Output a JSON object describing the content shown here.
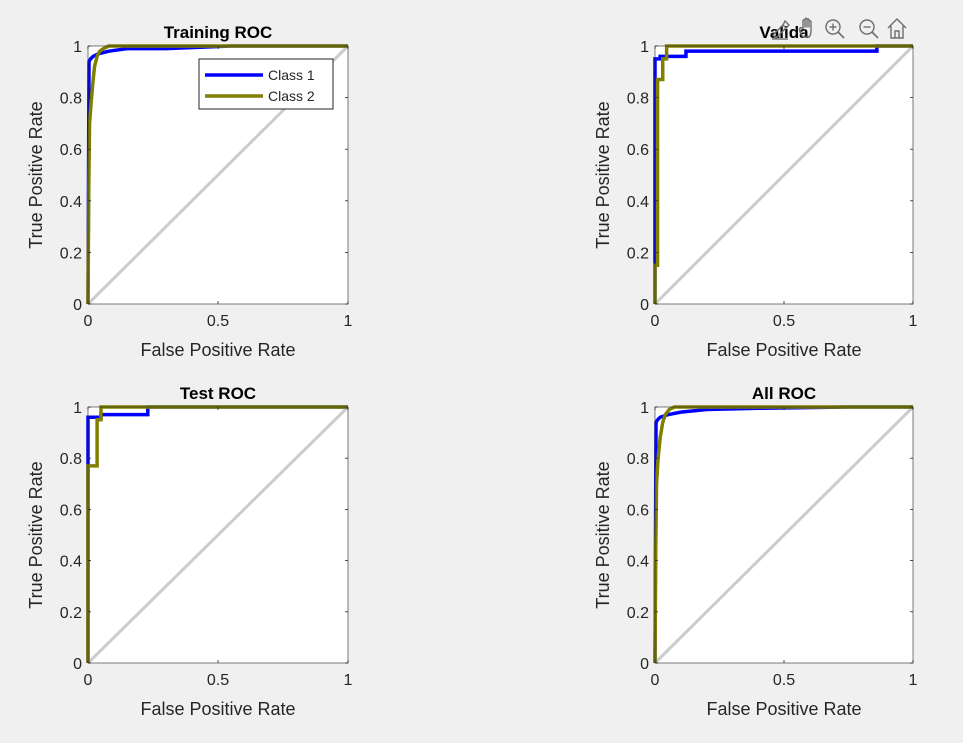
{
  "figure": {
    "background": "#f0f0f0",
    "axes_background": "#ffffff",
    "axes_border_color": "#262626",
    "diagonal_color": "#cccccc"
  },
  "toolbar": {
    "buttons": [
      {
        "name": "brush-icon",
        "icon": "brush"
      },
      {
        "name": "pan-icon",
        "icon": "hand"
      },
      {
        "name": "zoom-in-icon",
        "icon": "zoom-in"
      },
      {
        "name": "zoom-out-icon",
        "icon": "zoom-out"
      },
      {
        "name": "home-icon",
        "icon": "home"
      }
    ]
  },
  "legend": {
    "placement": "top-right (in Training ROC axes)",
    "entries": [
      {
        "label": "Class 1",
        "color": "#0000ff"
      },
      {
        "label": "Class 2",
        "color": "#808000"
      }
    ]
  },
  "chart_data": [
    {
      "type": "line",
      "title": "Training ROC",
      "xlabel": "False Positive Rate",
      "ylabel": "True Positive Rate",
      "xlim": [
        0,
        1
      ],
      "ylim": [
        0,
        1
      ],
      "xticks": [
        0,
        0.5,
        1
      ],
      "xtick_labels": [
        "0",
        "0.5",
        "1"
      ],
      "yticks": [
        0,
        0.2,
        0.4,
        0.6,
        0.8,
        1
      ],
      "ytick_labels": [
        "0",
        "0.2",
        "0.4",
        "0.6",
        "0.8",
        "1"
      ],
      "grid": false,
      "legend": true,
      "series": [
        {
          "name": "Class 1",
          "color": "#0000ff",
          "points": [
            [
              0,
              0
            ],
            [
              0.002,
              0.5
            ],
            [
              0.004,
              0.94
            ],
            [
              0.01,
              0.95
            ],
            [
              0.02,
              0.96
            ],
            [
              0.04,
              0.97
            ],
            [
              0.08,
              0.98
            ],
            [
              0.15,
              0.99
            ],
            [
              0.3,
              0.99
            ],
            [
              0.55,
              1
            ],
            [
              1,
              1
            ]
          ]
        },
        {
          "name": "Class 2",
          "color": "#808000",
          "points": [
            [
              0,
              0
            ],
            [
              0.003,
              0.45
            ],
            [
              0.006,
              0.7
            ],
            [
              0.012,
              0.78
            ],
            [
              0.018,
              0.85
            ],
            [
              0.025,
              0.92
            ],
            [
              0.035,
              0.96
            ],
            [
              0.045,
              0.98
            ],
            [
              0.06,
              0.99
            ],
            [
              0.08,
              1
            ],
            [
              1,
              1
            ]
          ]
        }
      ]
    },
    {
      "type": "line",
      "title": "Valida",
      "xlabel": "False Positive Rate",
      "ylabel": "True Positive Rate",
      "xlim": [
        0,
        1
      ],
      "ylim": [
        0,
        1
      ],
      "xticks": [
        0,
        0.5,
        1
      ],
      "xtick_labels": [
        "0",
        "0.5",
        "1"
      ],
      "yticks": [
        0,
        0.2,
        0.4,
        0.6,
        0.8,
        1
      ],
      "ytick_labels": [
        "0",
        "0.2",
        "0.4",
        "0.6",
        "0.8",
        "1"
      ],
      "grid": false,
      "legend": false,
      "series": [
        {
          "name": "Class 1",
          "color": "#0000ff",
          "points": [
            [
              0,
              0
            ],
            [
              0,
              0.95
            ],
            [
              0.02,
              0.95
            ],
            [
              0.02,
              0.96
            ],
            [
              0.12,
              0.96
            ],
            [
              0.12,
              0.98
            ],
            [
              0.86,
              0.98
            ],
            [
              0.86,
              1
            ],
            [
              1,
              1
            ]
          ]
        },
        {
          "name": "Class 2",
          "color": "#808000",
          "points": [
            [
              0,
              0
            ],
            [
              0,
              0.15
            ],
            [
              0.01,
              0.15
            ],
            [
              0.01,
              0.87
            ],
            [
              0.03,
              0.87
            ],
            [
              0.03,
              0.95
            ],
            [
              0.045,
              0.95
            ],
            [
              0.045,
              1
            ],
            [
              1,
              1
            ]
          ]
        }
      ]
    },
    {
      "type": "line",
      "title": "Test ROC",
      "xlabel": "False Positive Rate",
      "ylabel": "True Positive Rate",
      "xlim": [
        0,
        1
      ],
      "ylim": [
        0,
        1
      ],
      "xticks": [
        0,
        0.5,
        1
      ],
      "xtick_labels": [
        "0",
        "0.5",
        "1"
      ],
      "yticks": [
        0,
        0.2,
        0.4,
        0.6,
        0.8,
        1
      ],
      "ytick_labels": [
        "0",
        "0.2",
        "0.4",
        "0.6",
        "0.8",
        "1"
      ],
      "grid": false,
      "legend": false,
      "series": [
        {
          "name": "Class 1",
          "color": "#0000ff",
          "points": [
            [
              0,
              0
            ],
            [
              0,
              0.96
            ],
            [
              0.05,
              0.96
            ],
            [
              0.05,
              0.97
            ],
            [
              0.23,
              0.97
            ],
            [
              0.23,
              1
            ],
            [
              1,
              1
            ]
          ]
        },
        {
          "name": "Class 2",
          "color": "#808000",
          "points": [
            [
              0,
              0
            ],
            [
              0,
              0.77
            ],
            [
              0.035,
              0.77
            ],
            [
              0.035,
              0.95
            ],
            [
              0.05,
              0.95
            ],
            [
              0.05,
              1
            ],
            [
              1,
              1
            ]
          ]
        }
      ]
    },
    {
      "type": "line",
      "title": "All ROC",
      "xlabel": "False Positive Rate",
      "ylabel": "True Positive Rate",
      "xlim": [
        0,
        1
      ],
      "ylim": [
        0,
        1
      ],
      "xticks": [
        0,
        0.5,
        1
      ],
      "xtick_labels": [
        "0",
        "0.5",
        "1"
      ],
      "yticks": [
        0,
        0.2,
        0.4,
        0.6,
        0.8,
        1
      ],
      "ytick_labels": [
        "0",
        "0.2",
        "0.4",
        "0.6",
        "0.8",
        "1"
      ],
      "grid": false,
      "legend": false,
      "series": [
        {
          "name": "Class 1",
          "color": "#0000ff",
          "points": [
            [
              0,
              0
            ],
            [
              0.002,
              0.5
            ],
            [
              0.004,
              0.94
            ],
            [
              0.01,
              0.95
            ],
            [
              0.02,
              0.96
            ],
            [
              0.05,
              0.97
            ],
            [
              0.1,
              0.98
            ],
            [
              0.2,
              0.99
            ],
            [
              0.4,
              0.995
            ],
            [
              0.75,
              1
            ],
            [
              1,
              1
            ]
          ]
        },
        {
          "name": "Class 2",
          "color": "#808000",
          "points": [
            [
              0,
              0
            ],
            [
              0.003,
              0.45
            ],
            [
              0.006,
              0.7
            ],
            [
              0.012,
              0.8
            ],
            [
              0.02,
              0.88
            ],
            [
              0.03,
              0.94
            ],
            [
              0.04,
              0.97
            ],
            [
              0.055,
              0.99
            ],
            [
              0.075,
              1
            ],
            [
              1,
              1
            ]
          ]
        }
      ]
    }
  ]
}
